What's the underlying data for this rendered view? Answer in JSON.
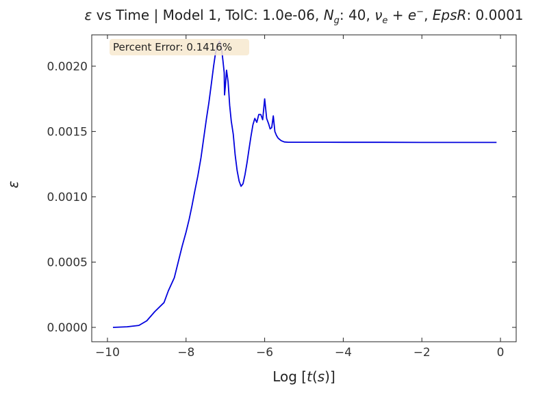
{
  "chart_data": {
    "type": "line",
    "title": "ε vs Time | Model 1, TolC: 1.0e-06, N_g: 40,  ν_e + e⁻, EpsR: 0.0001",
    "title_parts": {
      "eps": "ε",
      "text1": " vs Time | Model 1, TolC: 1.0e-06, ",
      "N": "N",
      "g": "g",
      "text2": ": 40,  ",
      "nu": "ν",
      "e_sub": "e",
      "plus": " + ",
      "e": "e",
      "minus": "−",
      "text3": ", ",
      "epsr": "EpsR",
      "text4": ": 0.0001"
    },
    "xlabel": "Log [t(s)]",
    "xlabel_parts": {
      "pre": "Log [",
      "t": "t",
      "open": "(",
      "s": "s",
      "close": ")]"
    },
    "ylabel": "ε",
    "xlim": [
      -10.4,
      0.4
    ],
    "ylim": [
      -0.00011,
      0.00224
    ],
    "xticks": [
      -10,
      -8,
      -6,
      -4,
      -2,
      0
    ],
    "xtick_labels": [
      "−10",
      "−8",
      "−6",
      "−4",
      "−2",
      "0"
    ],
    "yticks": [
      0,
      0.0005,
      0.001,
      0.0015,
      0.002
    ],
    "ytick_labels": [
      "0.0000",
      "0.0005",
      "0.0010",
      "0.0015",
      "0.0020"
    ],
    "annotation": "Percent Error: 0.1416%",
    "legend": "none",
    "grid": false,
    "line_color": "#0000dd",
    "annotation_bg": "#f7e9cf",
    "series": [
      {
        "x": [
          -9.86,
          -9.5,
          -9.2,
          -9.0,
          -8.8,
          -8.56,
          -8.45,
          -8.3,
          -8.2,
          -8.1,
          -8.0,
          -7.92,
          -7.85,
          -7.78,
          -7.7,
          -7.62,
          -7.55,
          -7.48,
          -7.42,
          -7.35,
          -7.3,
          -7.25,
          -7.2,
          -7.15,
          -7.12,
          -7.09,
          -7.06,
          -7.03,
          -7.02,
          -7.0,
          -6.97,
          -6.93,
          -6.89,
          -6.85,
          -6.8,
          -6.75,
          -6.7,
          -6.65,
          -6.6,
          -6.55,
          -6.5,
          -6.45,
          -6.4,
          -6.35,
          -6.3,
          -6.25,
          -6.2,
          -6.15,
          -6.1,
          -6.05,
          -6.0,
          -5.95,
          -5.9,
          -5.86,
          -5.82,
          -5.78,
          -5.74,
          -5.7,
          -5.66,
          -5.62,
          -5.58,
          -5.5,
          -5.4,
          -5.3,
          -5.2,
          -5.0,
          -4.5,
          -4.0,
          -3.0,
          -2.0,
          -1.0,
          -0.1
        ],
        "y": [
          0.0,
          4.5e-06,
          1.5e-05,
          5e-05,
          0.00012,
          0.00019,
          0.00028,
          0.00038,
          0.0005,
          0.00062,
          0.00073,
          0.00083,
          0.00093,
          0.00104,
          0.00116,
          0.0013,
          0.00145,
          0.0016,
          0.00172,
          0.00188,
          0.002,
          0.0021,
          0.00216,
          0.00219,
          0.00217,
          0.00212,
          0.00204,
          0.00195,
          0.00178,
          0.00185,
          0.00197,
          0.00188,
          0.0017,
          0.00158,
          0.00148,
          0.00132,
          0.0012,
          0.00112,
          0.00108,
          0.0011,
          0.00117,
          0.00126,
          0.00136,
          0.00146,
          0.00155,
          0.0016,
          0.00157,
          0.00163,
          0.00163,
          0.00159,
          0.00175,
          0.0016,
          0.00156,
          0.00152,
          0.00153,
          0.00162,
          0.0015,
          0.00147,
          0.00145,
          0.00144,
          0.00143,
          0.00142,
          0.001418,
          0.001418,
          0.001418,
          0.001418,
          0.001418,
          0.001417,
          0.001417,
          0.001416,
          0.001416,
          0.001416
        ]
      }
    ]
  }
}
